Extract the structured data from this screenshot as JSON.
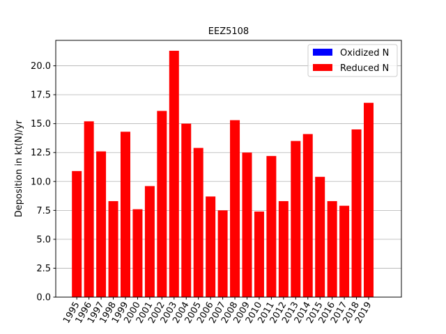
{
  "chart_data": {
    "type": "bar",
    "title": "EEZ5108",
    "xlabel": "",
    "ylabel": "Deposition in kt(N)/yr",
    "ylim": [
      0,
      22.2
    ],
    "yticks": [
      "0.0",
      "2.5",
      "5.0",
      "7.5",
      "10.0",
      "12.5",
      "15.0",
      "17.5",
      "20.0"
    ],
    "ytick_values": [
      0,
      2.5,
      5,
      7.5,
      10,
      12.5,
      15,
      17.5,
      20
    ],
    "grid": "horizontal",
    "legend_position": "top-right",
    "stacked": true,
    "categories": [
      "1995",
      "1996",
      "1997",
      "1998",
      "1999",
      "2000",
      "2001",
      "2002",
      "2003",
      "2004",
      "2005",
      "2006",
      "2007",
      "2008",
      "2009",
      "2010",
      "2011",
      "2012",
      "2013",
      "2014",
      "2015",
      "2016",
      "2017",
      "2018",
      "2019"
    ],
    "series": [
      {
        "name": "Oxidized N",
        "color": "#0000ff",
        "values": [
          0,
          0,
          0,
          0,
          0,
          0,
          0,
          0,
          0,
          0,
          0,
          0,
          0,
          0,
          0,
          0,
          0,
          0,
          0,
          0,
          0,
          0,
          0,
          0,
          0
        ]
      },
      {
        "name": "Reduced N",
        "color": "#ff0000",
        "values": [
          10.9,
          15.2,
          12.6,
          8.3,
          14.3,
          7.6,
          9.6,
          16.1,
          21.3,
          15.0,
          12.9,
          8.7,
          7.5,
          15.3,
          12.5,
          7.4,
          12.2,
          8.3,
          13.5,
          14.1,
          10.4,
          8.3,
          7.9,
          14.5,
          16.8
        ]
      }
    ]
  }
}
